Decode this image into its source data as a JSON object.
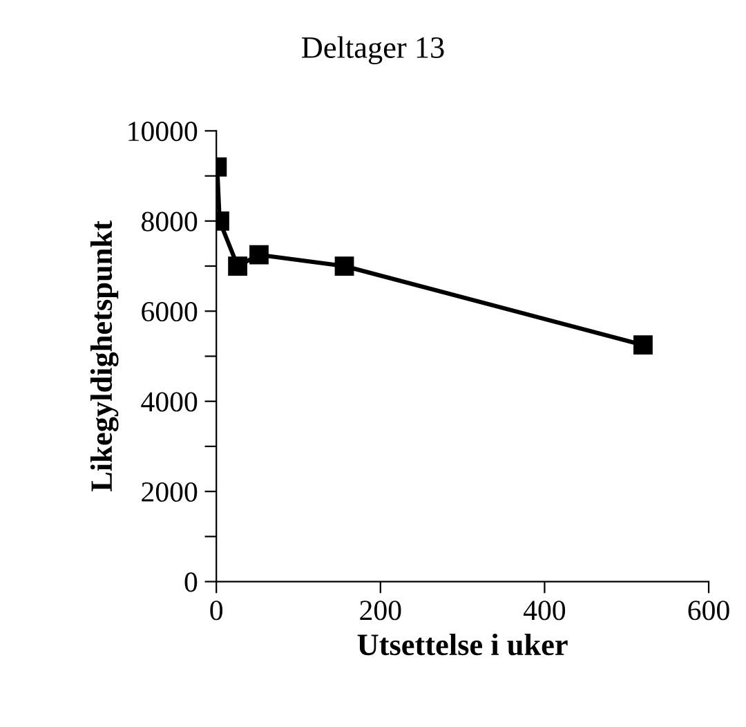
{
  "chart_data": {
    "type": "line",
    "title": "Deltager 13",
    "xlabel": "Utsettelse i uker",
    "ylabel": "Likegyldighetspunkt",
    "x": [
      1,
      4,
      26,
      52,
      156,
      520
    ],
    "series": [
      {
        "color": "#000000",
        "values": [
          9200,
          8000,
          7000,
          7250,
          7000,
          5250
        ]
      }
    ],
    "xlim": [
      0,
      600
    ],
    "xticks": [
      0,
      200,
      400,
      600
    ],
    "ylim": [
      0,
      10000
    ],
    "yticks": [
      0,
      {
        "value": 1000,
        "label": null
      },
      2000,
      {
        "value": 3000,
        "label": null
      },
      4000,
      {
        "value": 5000,
        "label": null
      },
      6000,
      {
        "value": 7000,
        "label": null
      },
      8000,
      {
        "value": 9000,
        "label": null
      },
      10000
    ],
    "marker": "square",
    "line_style": "solid",
    "grid": false,
    "legend": false
  }
}
